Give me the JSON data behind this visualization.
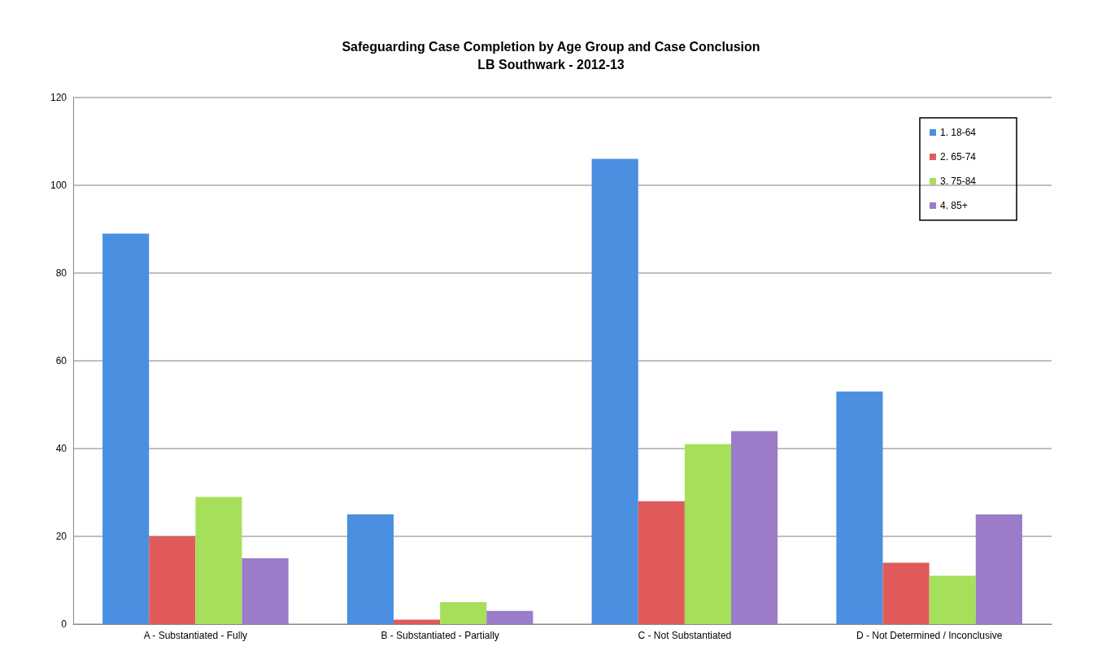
{
  "chart_data": {
    "type": "bar",
    "title": "Safeguarding Case Completion by Age Group and Case Conclusion",
    "subtitle": "LB Southwark - 2012-13",
    "categories": [
      "A - Substantiated - Fully",
      "B - Substantiated - Partially",
      "C - Not Substantiated",
      "D - Not Determined / Inconclusive"
    ],
    "series": [
      {
        "name": "1. 18-64",
        "color": "#4a8fe0",
        "values": [
          89,
          25,
          106,
          53
        ]
      },
      {
        "name": "2. 65-74",
        "color": "#e05a5a",
        "values": [
          20,
          1,
          28,
          14
        ]
      },
      {
        "name": "3. 75-84",
        "color": "#a6e05a",
        "values": [
          29,
          5,
          41,
          11
        ]
      },
      {
        "name": "4. 85+",
        "color": "#9a7cc8",
        "values": [
          15,
          3,
          44,
          25
        ]
      }
    ],
    "ylim": [
      0,
      120
    ],
    "yticks": [
      0,
      20,
      40,
      60,
      80,
      100,
      120
    ],
    "grid": "y",
    "legend": "top right"
  }
}
